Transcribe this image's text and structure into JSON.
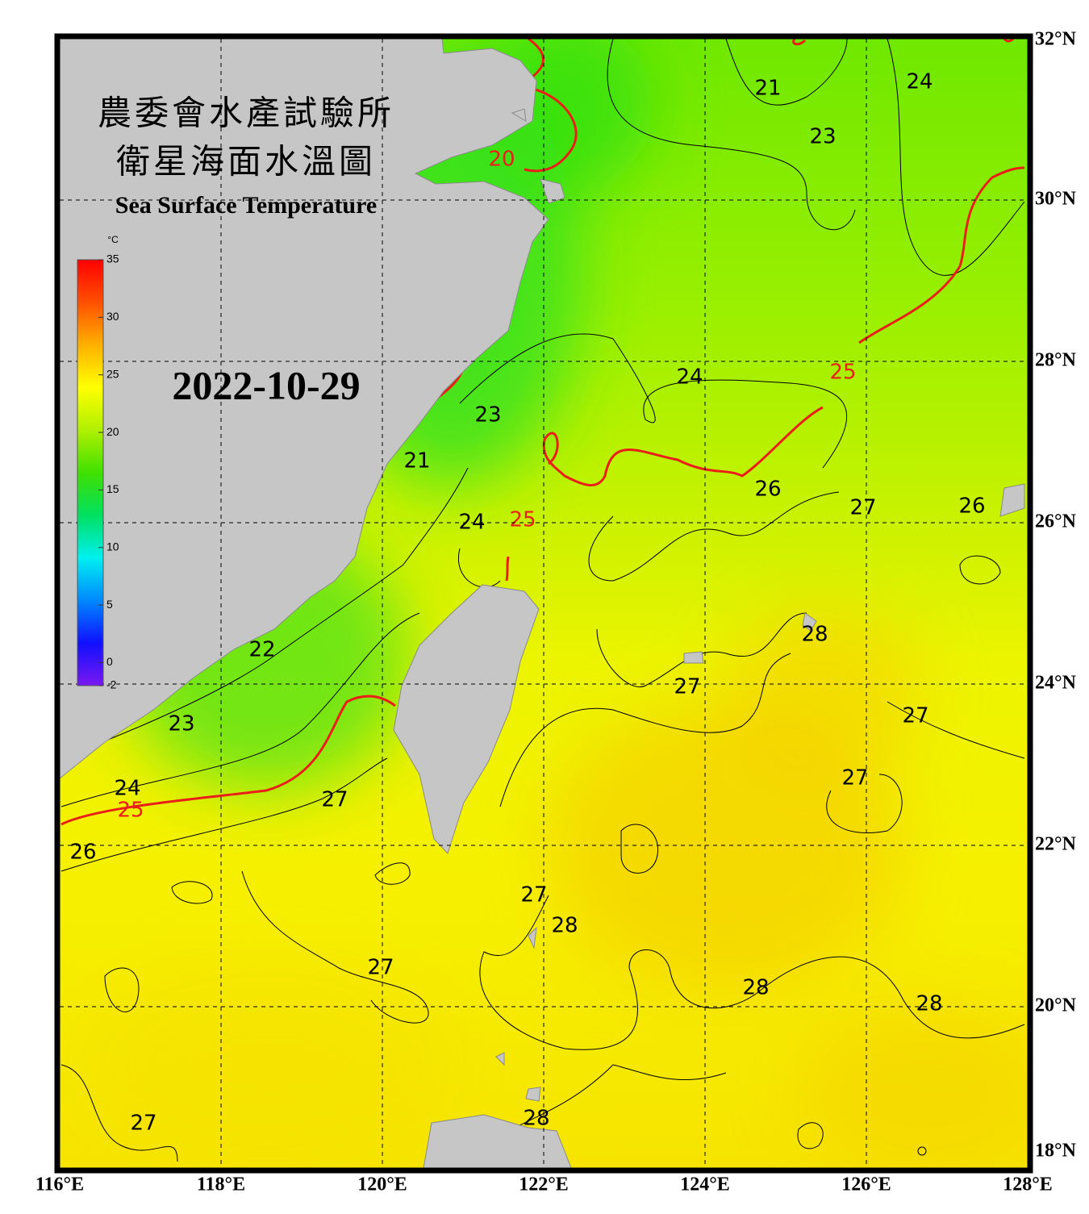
{
  "map": {
    "title_zh_1": "農委會水產試驗所",
    "title_zh_2": "衛星海面水溫圖",
    "title_en": "Sea Surface Temperature",
    "date": "2022-10-29",
    "grid": true,
    "lonlim": [
      116,
      128
    ],
    "latlim": [
      18,
      32
    ],
    "lonticks": [
      {
        "value": 116,
        "label": "116°E"
      },
      {
        "value": 118,
        "label": "118°E"
      },
      {
        "value": 120,
        "label": "120°E"
      },
      {
        "value": 122,
        "label": "122°E"
      },
      {
        "value": 124,
        "label": "124°E"
      },
      {
        "value": 126,
        "label": "126°E"
      },
      {
        "value": 128,
        "label": "128°E"
      }
    ],
    "latticks": [
      {
        "value": 32,
        "label": "32°N"
      },
      {
        "value": 30,
        "label": "30°N"
      },
      {
        "value": 28,
        "label": "28°N"
      },
      {
        "value": 26,
        "label": "26°N"
      },
      {
        "value": 24,
        "label": "24°N"
      },
      {
        "value": 22,
        "label": "22°N"
      },
      {
        "value": 20,
        "label": "20°N"
      },
      {
        "value": 18,
        "label": "18°N"
      }
    ],
    "colorbar": {
      "unit": "°C",
      "lim": [
        -2,
        35
      ],
      "ticks": [
        35,
        30,
        25,
        20,
        15,
        10,
        5,
        0,
        -2
      ],
      "colors": [
        "#7a18f0",
        "#1010ff",
        "#0088ff",
        "#00f0f0",
        "#00e060",
        "#40e000",
        "#b0f000",
        "#ffff00",
        "#ffb000",
        "#ff5000",
        "#ff0000"
      ]
    },
    "contour_color": "#000000",
    "isotherm_color": "#e82018",
    "contour_labels": [
      {
        "label": "21",
        "lon": 124.78,
        "lat": 31.38
      },
      {
        "label": "24",
        "lon": 126.66,
        "lat": 31.46
      },
      {
        "label": "23",
        "lon": 125.46,
        "lat": 30.78
      },
      {
        "label": "24",
        "lon": 123.81,
        "lat": 27.8
      },
      {
        "label": "23",
        "lon": 121.31,
        "lat": 27.33
      },
      {
        "label": "21",
        "lon": 120.43,
        "lat": 26.76
      },
      {
        "label": "26",
        "lon": 124.78,
        "lat": 26.41
      },
      {
        "label": "27",
        "lon": 125.96,
        "lat": 26.18
      },
      {
        "label": "26",
        "lon": 127.31,
        "lat": 26.2
      },
      {
        "label": "24",
        "lon": 121.11,
        "lat": 26.0
      },
      {
        "label": "28",
        "lon": 125.36,
        "lat": 24.61
      },
      {
        "label": "22",
        "lon": 118.51,
        "lat": 24.42
      },
      {
        "label": "27",
        "lon": 123.78,
        "lat": 23.96
      },
      {
        "label": "23",
        "lon": 117.51,
        "lat": 23.5
      },
      {
        "label": "27",
        "lon": 126.61,
        "lat": 23.6
      },
      {
        "label": "24",
        "lon": 116.84,
        "lat": 22.7
      },
      {
        "label": "27",
        "lon": 119.41,
        "lat": 22.56
      },
      {
        "label": "27",
        "lon": 125.86,
        "lat": 22.83
      },
      {
        "label": "26",
        "lon": 116.29,
        "lat": 21.91
      },
      {
        "label": "27",
        "lon": 121.88,
        "lat": 21.38
      },
      {
        "label": "28",
        "lon": 122.26,
        "lat": 21.0
      },
      {
        "label": "27",
        "lon": 119.98,
        "lat": 20.48
      },
      {
        "label": "28",
        "lon": 124.63,
        "lat": 20.23
      },
      {
        "label": "28",
        "lon": 126.78,
        "lat": 20.03
      },
      {
        "label": "27",
        "lon": 117.04,
        "lat": 18.55
      },
      {
        "label": "28",
        "lon": 121.91,
        "lat": 18.61
      }
    ],
    "isotherm_labels": [
      {
        "label": "20",
        "lon": 121.48,
        "lat": 30.5
      },
      {
        "label": "25",
        "lon": 125.71,
        "lat": 27.86
      },
      {
        "label": "25",
        "lon": 121.74,
        "lat": 26.03
      },
      {
        "label": "25",
        "lon": 116.88,
        "lat": 22.43
      }
    ]
  }
}
